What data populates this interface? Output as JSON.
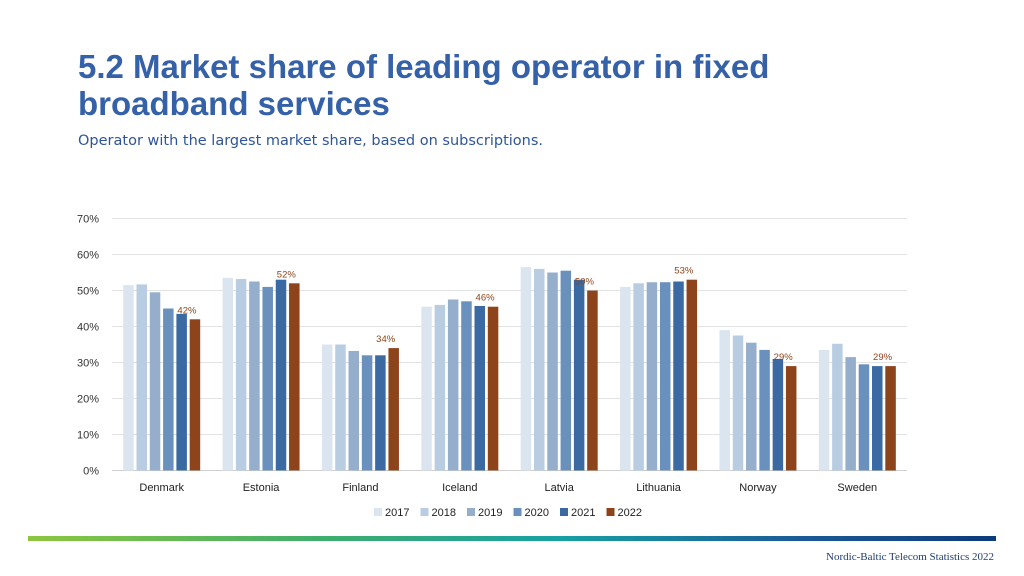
{
  "header": {
    "title": "5.2 Market share of leading operator in fixed broadband services",
    "subtitle": "Operator with the largest market share, based on subscriptions."
  },
  "footer": {
    "source": "Nordic-Baltic Telecom Statistics 2022"
  },
  "colors": {
    "2017": "#dbe5f0",
    "2018": "#b8cce2",
    "2019": "#94aecb",
    "2020": "#6a90be",
    "2021": "#3b6aa3",
    "2022": "#8e441a",
    "label": "#8e441a",
    "grid": "#e3e3e3"
  },
  "chart_data": {
    "type": "bar",
    "categories": [
      "Denmark",
      "Estonia",
      "Finland",
      "Iceland",
      "Latvia",
      "Lithuania",
      "Norway",
      "Sweden"
    ],
    "series": [
      {
        "name": "2017",
        "values": [
          51.5,
          53.5,
          35,
          45.5,
          56.5,
          51,
          39,
          33.5
        ]
      },
      {
        "name": "2018",
        "values": [
          51.7,
          53.2,
          35,
          46,
          56,
          52,
          37.5,
          35.2
        ]
      },
      {
        "name": "2019",
        "values": [
          49.5,
          52.5,
          33.2,
          47.5,
          55,
          52.3,
          35.5,
          31.5
        ]
      },
      {
        "name": "2020",
        "values": [
          45,
          51,
          32,
          47,
          55.5,
          52.3,
          33.5,
          29.5
        ]
      },
      {
        "name": "2021",
        "values": [
          43.5,
          53,
          32,
          45.7,
          53,
          52.5,
          31,
          29
        ]
      },
      {
        "name": "2022",
        "values": [
          42,
          52,
          34,
          45.5,
          50,
          53,
          29,
          29
        ]
      }
    ],
    "data_labels": [
      "42%",
      "52%",
      "34%",
      "46%",
      "50%",
      "53%",
      "29%",
      "29%"
    ],
    "yticks": [
      "0%",
      "10%",
      "20%",
      "30%",
      "40%",
      "50%",
      "60%",
      "70%"
    ],
    "ylim": [
      0,
      70
    ],
    "grid": true,
    "legend_position": "bottom",
    "xlabel": "",
    "ylabel": ""
  }
}
